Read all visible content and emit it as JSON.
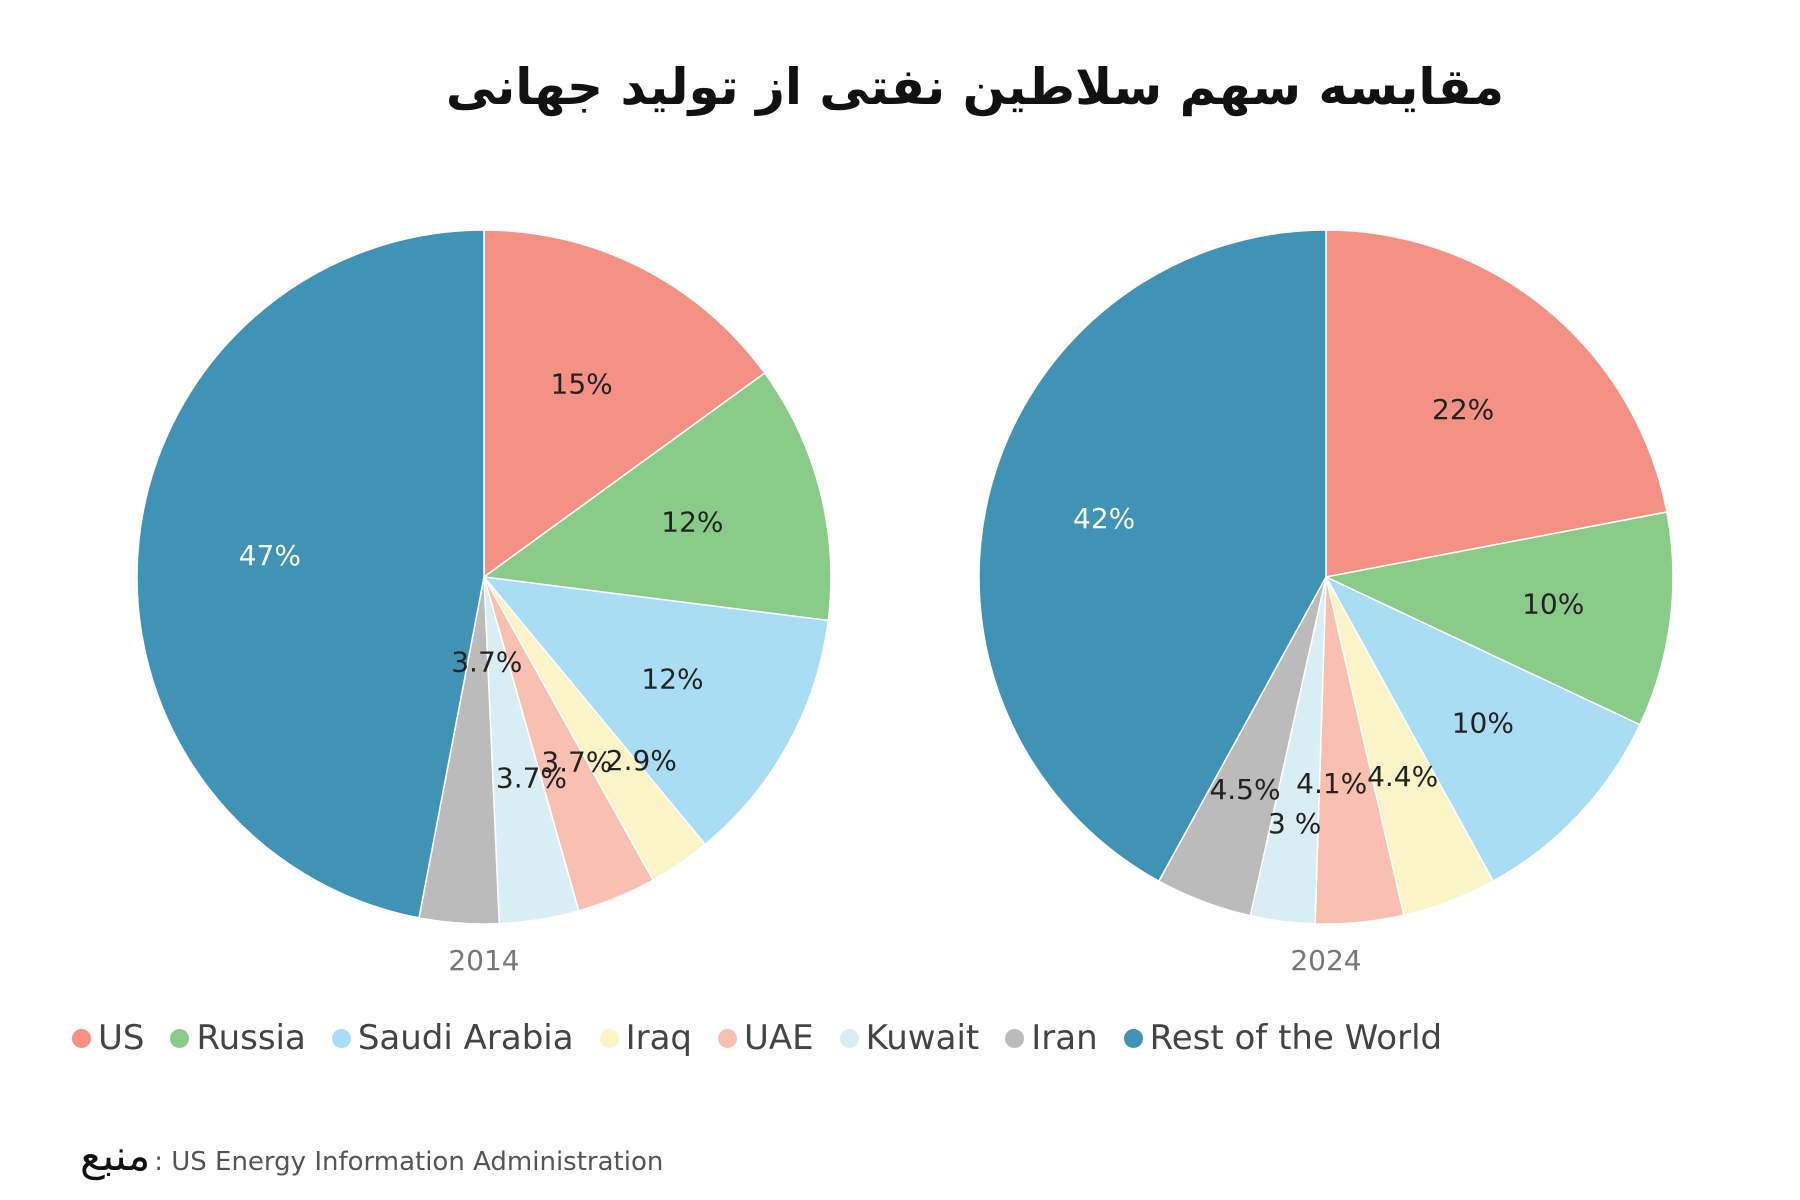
{
  "title": "مقایسه سهم سلاطین نفتی از تولید جهانی",
  "source": {
    "label": "منبع",
    "text": ": US Energy Information Administration"
  },
  "legend": [
    {
      "name": "US",
      "color": "#f49084"
    },
    {
      "name": "Russia",
      "color": "#8acb8a"
    },
    {
      "name": "Saudi Arabia",
      "color": "#a9ddf4"
    },
    {
      "name": "Iraq",
      "color": "#faf4c6"
    },
    {
      "name": "UAE",
      "color": "#f9bfb1"
    },
    {
      "name": "Kuwait",
      "color": "#d9eef4"
    },
    {
      "name": "Iran",
      "color": "#bbbbbb"
    },
    {
      "name": "Rest of the World",
      "color": "#4093b5"
    }
  ],
  "chart_data": [
    {
      "type": "pie",
      "xlabel": "2014",
      "categories": [
        "US",
        "Russia",
        "Saudi Arabia",
        "Iraq",
        "UAE",
        "Kuwait",
        "Iran",
        "Rest of the World"
      ],
      "values": [
        15,
        12,
        12,
        2.9,
        3.7,
        3.7,
        3.7,
        47
      ],
      "labels": [
        "15%",
        "12%",
        "12%",
        "2.9%",
        "3.7%",
        "3.7%",
        "3.7%",
        "47%"
      ]
    },
    {
      "type": "pie",
      "xlabel": "2024",
      "categories": [
        "US",
        "Russia",
        "Saudi Arabia",
        "Iraq",
        "UAE",
        "Kuwait",
        "Iran",
        "Rest of the World"
      ],
      "values": [
        22,
        10,
        10,
        4.4,
        4.1,
        3,
        4.5,
        42
      ],
      "labels": [
        "22%",
        "10%",
        "10%",
        "4.4%",
        "4.1%",
        "3 %",
        "4.5%",
        "42%"
      ]
    }
  ]
}
